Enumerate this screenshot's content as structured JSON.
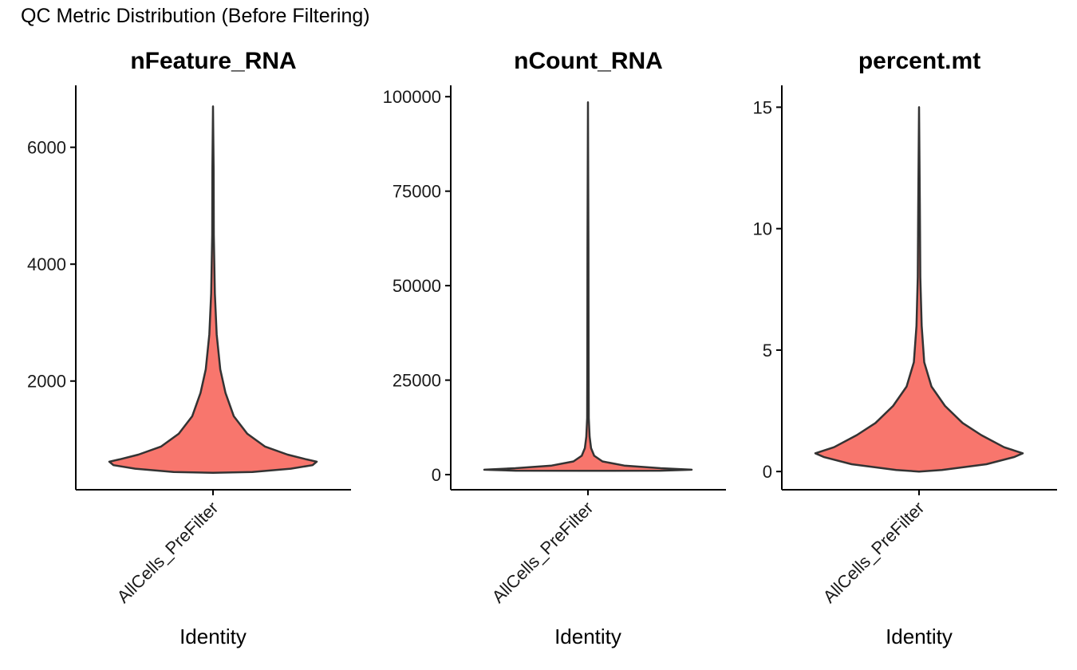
{
  "figure": {
    "title": "QC Metric Distribution (Before Filtering)"
  },
  "colors": {
    "violin_fill": "#F8766D",
    "violin_stroke": "#333333",
    "axis": "#000000"
  },
  "chart_data": [
    {
      "type": "violin",
      "title": "nFeature_RNA",
      "xlabel": "Identity",
      "ylabel": "",
      "categories": [
        "AllCells_PreFilter"
      ],
      "yticks": [
        2000,
        4000,
        6000
      ],
      "ytick_labels": [
        "2000",
        "4000",
        "6000"
      ],
      "ylim": [
        140,
        7060
      ],
      "series": [
        {
          "values_min": 430,
          "values_max": 6700,
          "density_profile": [
            {
              "y": 430,
              "w": 0.0
            },
            {
              "y": 445,
              "w": 0.38
            },
            {
              "y": 500,
              "w": 0.75
            },
            {
              "y": 560,
              "w": 0.96
            },
            {
              "y": 620,
              "w": 1.0
            },
            {
              "y": 660,
              "w": 0.9
            },
            {
              "y": 740,
              "w": 0.72
            },
            {
              "y": 880,
              "w": 0.5
            },
            {
              "y": 1100,
              "w": 0.33
            },
            {
              "y": 1400,
              "w": 0.2
            },
            {
              "y": 1800,
              "w": 0.12
            },
            {
              "y": 2200,
              "w": 0.07
            },
            {
              "y": 2800,
              "w": 0.035
            },
            {
              "y": 3500,
              "w": 0.018
            },
            {
              "y": 4500,
              "w": 0.008
            },
            {
              "y": 5600,
              "w": 0.006
            },
            {
              "y": 6700,
              "w": 0.0
            }
          ]
        }
      ]
    },
    {
      "type": "violin",
      "title": "nCount_RNA",
      "xlabel": "Identity",
      "ylabel": "",
      "categories": [
        "AllCells_PreFilter"
      ],
      "yticks": [
        0,
        25000,
        50000,
        75000,
        100000
      ],
      "ytick_labels": [
        "0",
        "25000",
        "50000",
        "75000",
        "100000"
      ],
      "ylim": [
        -4000,
        103000
      ],
      "series": [
        {
          "values_min": 1000,
          "values_max": 98500,
          "density_profile": [
            {
              "y": 1000,
              "w": 0.0
            },
            {
              "y": 1050,
              "w": 0.7
            },
            {
              "y": 1300,
              "w": 1.0
            },
            {
              "y": 1700,
              "w": 0.7
            },
            {
              "y": 2400,
              "w": 0.35
            },
            {
              "y": 3500,
              "w": 0.14
            },
            {
              "y": 5000,
              "w": 0.06
            },
            {
              "y": 7000,
              "w": 0.03
            },
            {
              "y": 10000,
              "w": 0.016
            },
            {
              "y": 15000,
              "w": 0.008
            },
            {
              "y": 30000,
              "w": 0.006
            },
            {
              "y": 60000,
              "w": 0.005
            },
            {
              "y": 98500,
              "w": 0.0
            }
          ]
        }
      ]
    },
    {
      "type": "violin",
      "title": "percent.mt",
      "xlabel": "Identity",
      "ylabel": "",
      "categories": [
        "AllCells_PreFilter"
      ],
      "yticks": [
        0,
        5,
        10,
        15
      ],
      "ytick_labels": [
        "0",
        "5",
        "10",
        "15"
      ],
      "ylim": [
        -0.75,
        15.9
      ],
      "series": [
        {
          "values_min": 0,
          "values_max": 15,
          "density_profile": [
            {
              "y": 0.0,
              "w": 0.0
            },
            {
              "y": 0.06,
              "w": 0.22
            },
            {
              "y": 0.3,
              "w": 0.65
            },
            {
              "y": 0.6,
              "w": 0.92
            },
            {
              "y": 0.75,
              "w": 1.0
            },
            {
              "y": 1.0,
              "w": 0.82
            },
            {
              "y": 1.5,
              "w": 0.6
            },
            {
              "y": 2.0,
              "w": 0.42
            },
            {
              "y": 2.7,
              "w": 0.25
            },
            {
              "y": 3.5,
              "w": 0.12
            },
            {
              "y": 4.5,
              "w": 0.05
            },
            {
              "y": 6.0,
              "w": 0.025
            },
            {
              "y": 8.0,
              "w": 0.012
            },
            {
              "y": 11.0,
              "w": 0.008
            },
            {
              "y": 15.0,
              "w": 0.0
            }
          ]
        }
      ]
    }
  ]
}
